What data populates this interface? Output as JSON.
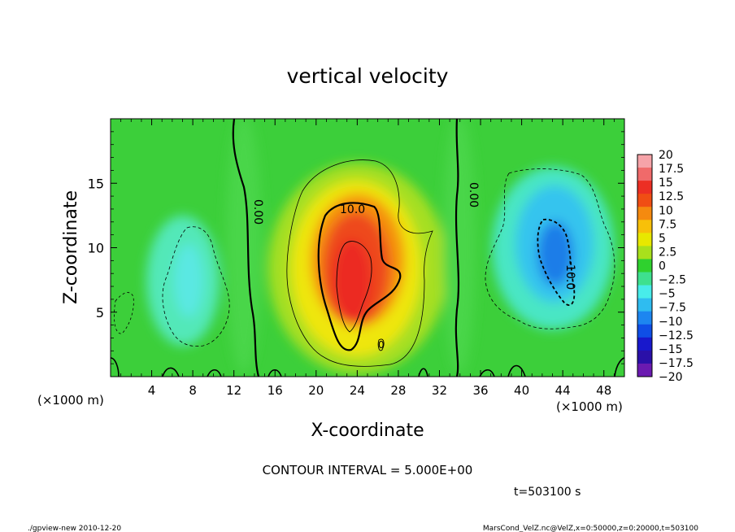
{
  "chart_data": {
    "type": "heatmap",
    "title": "vertical velocity",
    "xlabel": "X-coordinate",
    "ylabel": "Z-coordinate",
    "x_unit": "(×1000 m)",
    "x_unit_right": "(×1000 m)",
    "xlim": [
      0,
      50
    ],
    "ylim": [
      0,
      20
    ],
    "x_ticks": [
      "4",
      "8",
      "12",
      "16",
      "20",
      "24",
      "28",
      "32",
      "36",
      "40",
      "44",
      "48"
    ],
    "y_ticks": [
      "5",
      "10",
      "15"
    ],
    "colorbar": {
      "levels": [
        "20",
        "17.5",
        "15",
        "12.5",
        "10",
        "7.5",
        "5",
        "2.5",
        "0",
        "−2.5",
        "−5",
        "−7.5",
        "−10",
        "−12.5",
        "−15",
        "−17.5",
        "−20"
      ],
      "colors": [
        "#f6a3a8",
        "#f06a6a",
        "#ec2f24",
        "#f04e14",
        "#f58a0f",
        "#f8c009",
        "#e8e800",
        "#a8e01c",
        "#2fd12e",
        "#3ee08f",
        "#48ecea",
        "#2fbcf0",
        "#1d86f0",
        "#0f4ee6",
        "#1818cc",
        "#2a10a8",
        "#6a1ab0"
      ]
    },
    "contour_labels": [
      "0.00",
      "0.00",
      "10.0",
      "-10.0",
      "0"
    ],
    "contour_interval_text": "CONTOUR INTERVAL = 5.000E+00",
    "time_text": "t=503100 s"
  },
  "footer": {
    "left": "./gpview-new  2010-12-20",
    "right": "MarsCond_VelZ.nc@VelZ,x=0:50000,z=0:20000,t=503100"
  }
}
